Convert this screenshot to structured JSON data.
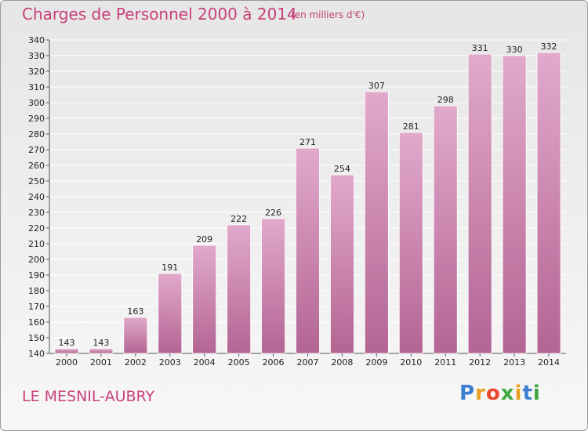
{
  "header": {
    "title": "Charges de Personnel 2000 à 2014",
    "subtitle": "(en milliers d'€)"
  },
  "footer": {
    "city": "LE MESNIL-AUBRY",
    "logo_text": "Proxiti"
  },
  "colors": {
    "title": "#c8407a",
    "bar_top": "#e2a9cc",
    "bar_bottom": "#b36593",
    "grid": "#ffffff",
    "axis": "#555555"
  },
  "chart_data": {
    "type": "bar",
    "title": "Charges de Personnel 2000 à 2014",
    "subtitle": "(en milliers d'€)",
    "categories": [
      "2000",
      "2001",
      "2002",
      "2003",
      "2004",
      "2005",
      "2006",
      "2007",
      "2008",
      "2009",
      "2010",
      "2011",
      "2012",
      "2013",
      "2014"
    ],
    "values": [
      143,
      143,
      163,
      191,
      209,
      222,
      226,
      271,
      254,
      307,
      281,
      298,
      331,
      330,
      332
    ],
    "ylim": [
      140,
      340
    ],
    "ytick_step": 10,
    "grid": true,
    "xlabel": "",
    "ylabel": ""
  }
}
